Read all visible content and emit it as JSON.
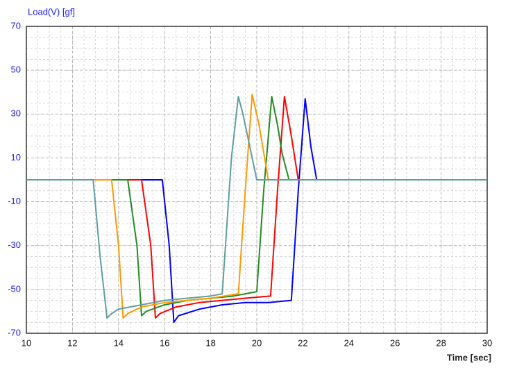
{
  "chart_data": {
    "type": "line",
    "ylabel": "Load(V) [gf]",
    "xlabel": "Time [sec]",
    "xlim": [
      10,
      30
    ],
    "xticks": [
      10,
      12,
      14,
      16,
      18,
      20,
      22,
      24,
      26,
      28,
      30
    ],
    "ylim": [
      -70,
      70
    ],
    "yticks": [
      -70,
      -50,
      -30,
      -10,
      10,
      30,
      50,
      70
    ],
    "grid": true,
    "series": [
      {
        "color": "#0000ff",
        "x": [
          10,
          15.9,
          16.2,
          16.4,
          16.6,
          17.5,
          18.5,
          19.5,
          20.5,
          21.5,
          21.8,
          22.1,
          22.35,
          22.6,
          30
        ],
        "values": [
          0,
          0,
          -30,
          -65,
          -62,
          -59,
          -57,
          -56,
          -56,
          -55,
          -5,
          37,
          15,
          0,
          0
        ]
      },
      {
        "color": "#ff0000",
        "x": [
          10,
          15.0,
          15.4,
          15.6,
          15.8,
          16.5,
          17.5,
          18.5,
          19.5,
          20.6,
          20.9,
          21.2,
          21.5,
          21.8,
          30
        ],
        "values": [
          0,
          0,
          -30,
          -63,
          -61,
          -58,
          -56,
          -55,
          -54,
          -53,
          -5,
          38,
          20,
          0,
          0
        ]
      },
      {
        "color": "#228b22",
        "x": [
          10,
          14.4,
          14.8,
          15.0,
          15.2,
          16,
          17,
          18,
          19,
          20.0,
          20.3,
          20.65,
          20.9,
          21.1,
          21.4,
          30
        ],
        "values": [
          0,
          0,
          -30,
          -62,
          -60,
          -57,
          -55,
          -54,
          -53,
          -51,
          -5,
          38,
          25,
          12,
          0,
          0
        ]
      },
      {
        "color": "#ff9900",
        "x": [
          10,
          13.7,
          14.0,
          14.2,
          14.4,
          15,
          16,
          17,
          18,
          19.2,
          19.5,
          19.8,
          20.1,
          20.5,
          30
        ],
        "values": [
          0,
          0,
          -30,
          -63,
          -61,
          -58,
          -56,
          -55,
          -54,
          -52,
          -5,
          39,
          25,
          0,
          0
        ]
      },
      {
        "color": "#5f9ea0",
        "x": [
          10,
          12.9,
          13.2,
          13.5,
          13.7,
          14,
          15,
          16,
          17,
          18,
          18.5,
          18.9,
          19.2,
          19.4,
          19.7,
          20,
          30
        ],
        "values": [
          0,
          0,
          -35,
          -63,
          -61,
          -59,
          -57,
          -55,
          -54,
          -53,
          -52,
          10,
          38,
          30,
          15,
          0,
          0
        ]
      }
    ]
  }
}
